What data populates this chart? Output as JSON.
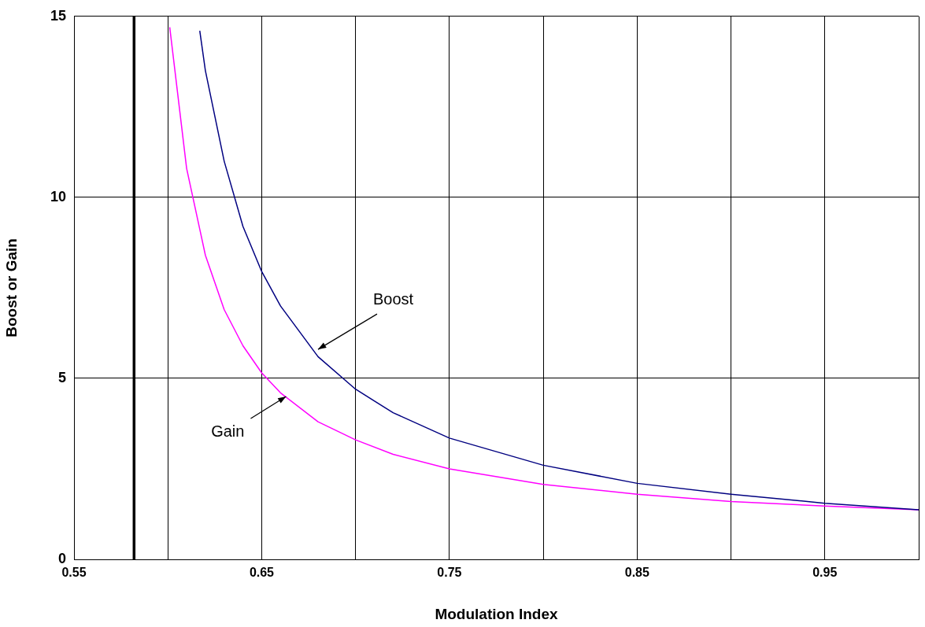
{
  "chart_data": {
    "type": "line",
    "xlabel": "Modulation Index",
    "ylabel": "Boost or Gain",
    "xlim": [
      0.55,
      1.0
    ],
    "xticks": [
      0.55,
      {
        "value": 0.6,
        "label": null
      },
      0.65,
      {
        "value": 0.7,
        "label": null
      },
      0.75,
      {
        "value": 0.8,
        "label": null
      },
      0.85,
      {
        "value": 0.9,
        "label": null
      },
      0.95,
      {
        "value": 1.0,
        "label": null
      }
    ],
    "ylim": [
      0,
      15
    ],
    "yticks": [
      0,
      5,
      10,
      15
    ],
    "grid": true,
    "legend": false,
    "marker": "none",
    "line_style": "solid",
    "series": [
      {
        "color": "#000080",
        "x": [
          0.617,
          0.62,
          0.63,
          0.64,
          0.65,
          0.66,
          0.68,
          0.7,
          0.72,
          0.75,
          0.8,
          0.85,
          0.9,
          0.95,
          1.0
        ],
        "values": [
          14.6,
          13.5,
          11.0,
          9.2,
          7.95,
          7.0,
          5.6,
          4.7,
          4.05,
          3.35,
          2.6,
          2.1,
          1.8,
          1.55,
          1.37
        ]
      },
      {
        "color": "#ff00ff",
        "x": [
          0.601,
          0.61,
          0.62,
          0.63,
          0.64,
          0.65,
          0.66,
          0.68,
          0.7,
          0.72,
          0.75,
          0.8,
          0.85,
          0.9,
          0.95,
          1.0
        ],
        "values": [
          14.7,
          10.8,
          8.4,
          6.9,
          5.9,
          5.15,
          4.6,
          3.8,
          3.3,
          2.9,
          2.5,
          2.07,
          1.8,
          1.6,
          1.47,
          1.37
        ]
      }
    ],
    "ref_lines": [
      {
        "axis": "x",
        "value": 0.582,
        "color": "#000000"
      }
    ],
    "annotations": [
      {
        "text": "Boost",
        "x": 0.68,
        "y": 5.8
      },
      {
        "text": "Gain",
        "x": 0.663,
        "y": 4.5
      }
    ]
  }
}
